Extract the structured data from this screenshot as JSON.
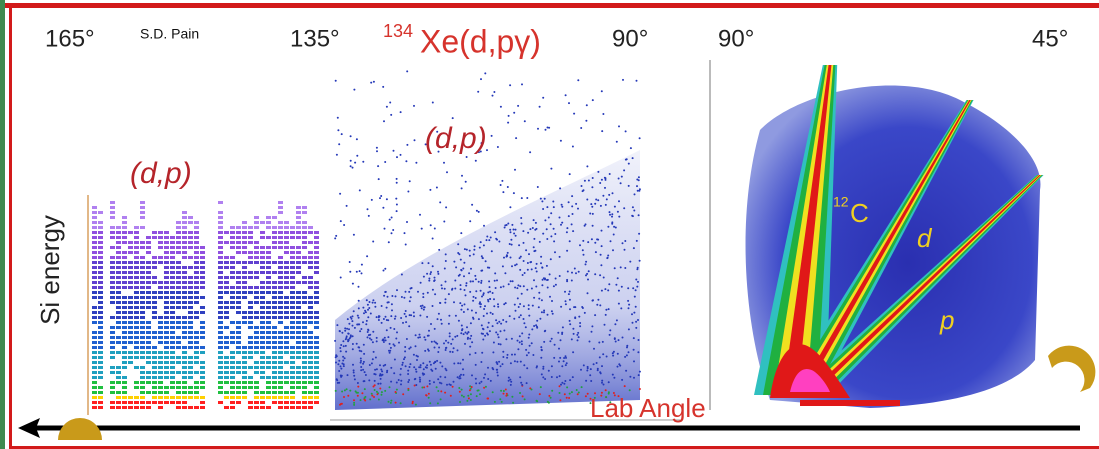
{
  "angle_labels": [
    "165°",
    "135°",
    "90°",
    "90°",
    "45°"
  ],
  "author": "S.D. Pain",
  "title": {
    "superscript": "134",
    "text": "Xe(d,pγ)"
  },
  "panel_labels": [
    "(d,p)",
    "(d,p)"
  ],
  "y_axis_label": "Si energy",
  "x_axis_label": "Lab Angle",
  "particle_labels": {
    "carbon": {
      "superscript": "12",
      "text": "C"
    },
    "deuteron": "d",
    "proton": "p"
  }
}
